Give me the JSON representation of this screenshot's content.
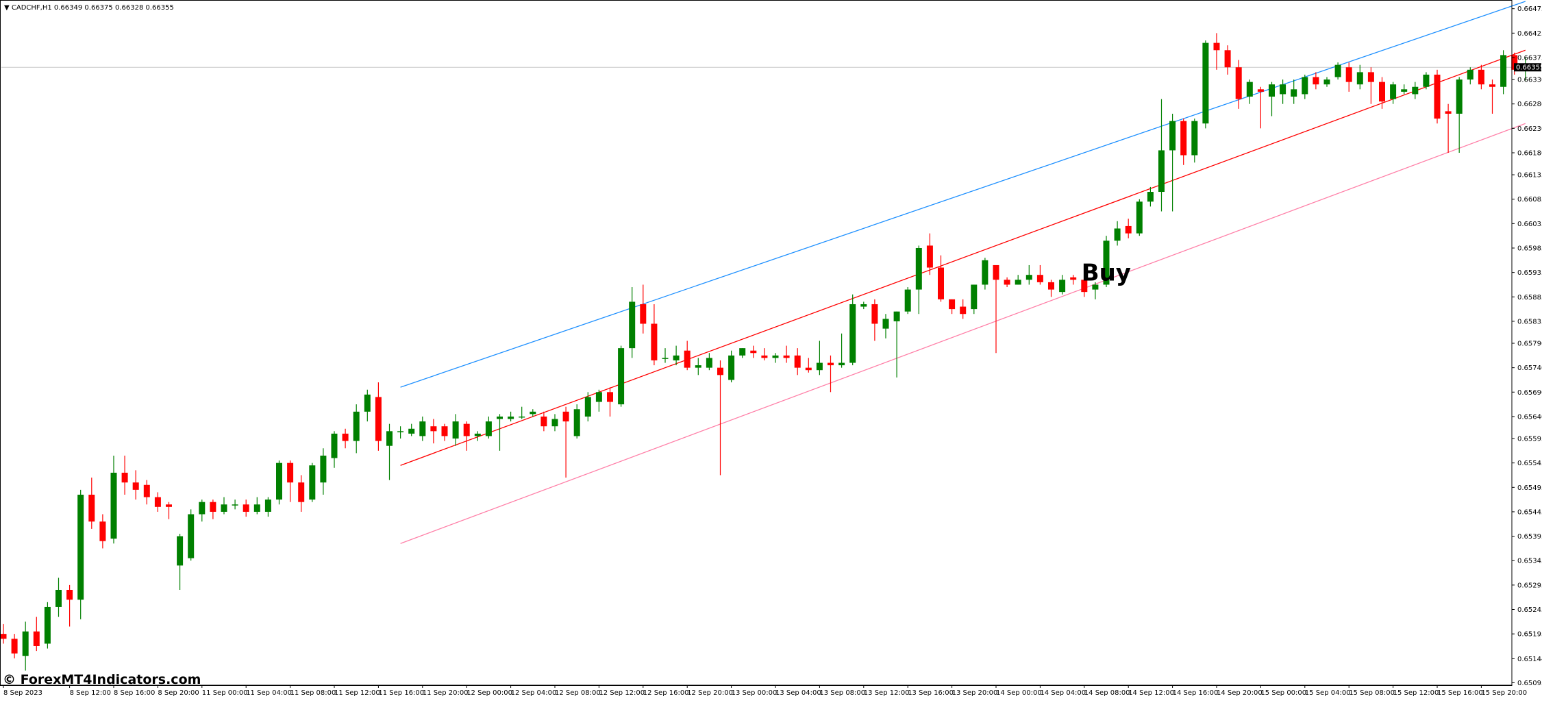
{
  "header": {
    "arrow": "▼",
    "symbol": "CADCHF,H1",
    "ohlc": "0.66349 0.66375 0.66328 0.66355"
  },
  "signal_label": "Buy",
  "watermark": "© ForexMT4Indicators.com",
  "current_price_label": "0.66355",
  "colors": {
    "bull": "#008000",
    "bear": "#ff0000",
    "upper_band": "#1e90ff",
    "middle_line": "#ff0000",
    "lower_band": "#ff80a8",
    "grid_line": "#c8c8c8",
    "axis": "#000000"
  },
  "chart_data": {
    "type": "candlestick",
    "timeframe": "H1",
    "ylim": [
      0.6509,
      0.6649
    ],
    "y_ticks": [
      "0.66475",
      "0.66425",
      "0.66375",
      "0.66330",
      "0.66280",
      "0.66230",
      "0.66180",
      "0.66135",
      "0.66085",
      "0.66035",
      "0.65985",
      "0.65935",
      "0.65885",
      "0.65835",
      "0.65790",
      "0.65740",
      "0.65690",
      "0.65640",
      "0.65595",
      "0.65545",
      "0.65495",
      "0.65445",
      "0.65395",
      "0.65345",
      "0.65295",
      "0.65245",
      "0.65195",
      "0.65144",
      "0.65095"
    ],
    "x_ticks": [
      {
        "index": 0,
        "label": "8 Sep 2023"
      },
      {
        "index": 6,
        "label": "8 Sep 12:00"
      },
      {
        "index": 10,
        "label": "8 Sep 16:00"
      },
      {
        "index": 14,
        "label": "8 Sep 20:00"
      },
      {
        "index": 18,
        "label": "11 Sep 00:00"
      },
      {
        "index": 22,
        "label": "11 Sep 04:00"
      },
      {
        "index": 26,
        "label": "11 Sep 08:00"
      },
      {
        "index": 30,
        "label": "11 Sep 12:00"
      },
      {
        "index": 34,
        "label": "11 Sep 16:00"
      },
      {
        "index": 38,
        "label": "11 Sep 20:00"
      },
      {
        "index": 42,
        "label": "12 Sep 00:00"
      },
      {
        "index": 46,
        "label": "12 Sep 04:00"
      },
      {
        "index": 50,
        "label": "12 Sep 08:00"
      },
      {
        "index": 54,
        "label": "12 Sep 12:00"
      },
      {
        "index": 58,
        "label": "12 Sep 16:00"
      },
      {
        "index": 62,
        "label": "12 Sep 20:00"
      },
      {
        "index": 66,
        "label": "13 Sep 00:00"
      },
      {
        "index": 70,
        "label": "13 Sep 04:00"
      },
      {
        "index": 74,
        "label": "13 Sep 08:00"
      },
      {
        "index": 78,
        "label": "13 Sep 12:00"
      },
      {
        "index": 82,
        "label": "13 Sep 16:00"
      },
      {
        "index": 86,
        "label": "13 Sep 20:00"
      },
      {
        "index": 90,
        "label": "14 Sep 00:00"
      },
      {
        "index": 94,
        "label": "14 Sep 04:00"
      },
      {
        "index": 98,
        "label": "14 Sep 08:00"
      },
      {
        "index": 102,
        "label": "14 Sep 12:00"
      },
      {
        "index": 106,
        "label": "14 Sep 16:00"
      },
      {
        "index": 110,
        "label": "14 Sep 20:00"
      },
      {
        "index": 114,
        "label": "15 Sep 00:00"
      },
      {
        "index": 118,
        "label": "15 Sep 04:00"
      },
      {
        "index": 122,
        "label": "15 Sep 08:00"
      },
      {
        "index": 126,
        "label": "15 Sep 12:00"
      },
      {
        "index": 130,
        "label": "15 Sep 16:00"
      },
      {
        "index": 134,
        "label": "15 Sep 20:00"
      }
    ],
    "current_price": 0.66355,
    "signal": {
      "label": "Buy",
      "index": 97,
      "price": 0.65935
    },
    "candles": [
      [
        0.65195,
        0.65185,
        0.65215,
        0.65175
      ],
      [
        0.65185,
        0.65155,
        0.65195,
        0.65145
      ],
      [
        0.6515,
        0.652,
        0.6522,
        0.6512
      ],
      [
        0.652,
        0.6517,
        0.6523,
        0.6516
      ],
      [
        0.65175,
        0.6525,
        0.6526,
        0.65165
      ],
      [
        0.6525,
        0.65285,
        0.6531,
        0.6523
      ],
      [
        0.65285,
        0.65265,
        0.65295,
        0.6521
      ],
      [
        0.65265,
        0.6548,
        0.6549,
        0.65225
      ],
      [
        0.6548,
        0.65425,
        0.65515,
        0.6541
      ],
      [
        0.65425,
        0.65385,
        0.6544,
        0.6537
      ],
      [
        0.6539,
        0.65525,
        0.6556,
        0.6538
      ],
      [
        0.65525,
        0.65505,
        0.6556,
        0.6548
      ],
      [
        0.65505,
        0.6549,
        0.6553,
        0.6547
      ],
      [
        0.655,
        0.65475,
        0.6551,
        0.6546
      ],
      [
        0.65475,
        0.65455,
        0.65485,
        0.65445
      ],
      [
        0.6546,
        0.65455,
        0.65465,
        0.6543
      ],
      [
        0.65335,
        0.65395,
        0.654,
        0.65285
      ],
      [
        0.6535,
        0.6544,
        0.6545,
        0.65345
      ],
      [
        0.6544,
        0.65465,
        0.6547,
        0.65425
      ],
      [
        0.65465,
        0.65445,
        0.6547,
        0.6543
      ],
      [
        0.65445,
        0.6546,
        0.65475,
        0.6544
      ],
      [
        0.6546,
        0.6546,
        0.6547,
        0.6545
      ],
      [
        0.6546,
        0.65445,
        0.6547,
        0.65435
      ],
      [
        0.65445,
        0.6546,
        0.65475,
        0.6544
      ],
      [
        0.65445,
        0.6547,
        0.65475,
        0.65435
      ],
      [
        0.6547,
        0.65545,
        0.6555,
        0.6546
      ],
      [
        0.65545,
        0.65505,
        0.6555,
        0.65465
      ],
      [
        0.65505,
        0.65465,
        0.6552,
        0.65445
      ],
      [
        0.6547,
        0.6554,
        0.65545,
        0.65465
      ],
      [
        0.65505,
        0.6556,
        0.65575,
        0.6548
      ],
      [
        0.65555,
        0.65605,
        0.6561,
        0.65535
      ],
      [
        0.65605,
        0.6559,
        0.65615,
        0.65575
      ],
      [
        0.6559,
        0.6565,
        0.65665,
        0.65565
      ],
      [
        0.6565,
        0.65685,
        0.65695,
        0.6563
      ],
      [
        0.6568,
        0.6559,
        0.6571,
        0.6557
      ],
      [
        0.6558,
        0.6561,
        0.65625,
        0.6551
      ],
      [
        0.6561,
        0.6561,
        0.6562,
        0.65595
      ],
      [
        0.65605,
        0.65615,
        0.65625,
        0.656
      ],
      [
        0.656,
        0.6563,
        0.6564,
        0.6559
      ],
      [
        0.6562,
        0.6561,
        0.65635,
        0.65585
      ],
      [
        0.6562,
        0.656,
        0.65625,
        0.6559
      ],
      [
        0.65595,
        0.6563,
        0.65645,
        0.6558
      ],
      [
        0.65625,
        0.656,
        0.6563,
        0.6557
      ],
      [
        0.656,
        0.65605,
        0.6561,
        0.6559
      ],
      [
        0.656,
        0.6563,
        0.6564,
        0.65595
      ],
      [
        0.65635,
        0.6564,
        0.65645,
        0.6557
      ],
      [
        0.65635,
        0.6564,
        0.6565,
        0.6563
      ],
      [
        0.6564,
        0.6564,
        0.6566,
        0.65635
      ],
      [
        0.65645,
        0.6565,
        0.65655,
        0.6564
      ],
      [
        0.6564,
        0.6562,
        0.6565,
        0.6561
      ],
      [
        0.6562,
        0.65635,
        0.65645,
        0.6561
      ],
      [
        0.6565,
        0.6563,
        0.6566,
        0.65515
      ],
      [
        0.656,
        0.65655,
        0.65665,
        0.65595
      ],
      [
        0.6564,
        0.6568,
        0.6569,
        0.6563
      ],
      [
        0.6567,
        0.6569,
        0.65695,
        0.6565
      ],
      [
        0.6569,
        0.6567,
        0.657,
        0.6564
      ],
      [
        0.65665,
        0.6578,
        0.65785,
        0.6566
      ],
      [
        0.6578,
        0.65875,
        0.65905,
        0.6576
      ],
      [
        0.6587,
        0.6583,
        0.6591,
        0.6581
      ],
      [
        0.6583,
        0.65755,
        0.6587,
        0.65745
      ],
      [
        0.6576,
        0.6576,
        0.6578,
        0.6575
      ],
      [
        0.65755,
        0.65765,
        0.65785,
        0.65745
      ],
      [
        0.65775,
        0.6574,
        0.65795,
        0.65735
      ],
      [
        0.6574,
        0.65745,
        0.6576,
        0.65725
      ],
      [
        0.6574,
        0.6576,
        0.6577,
        0.65735
      ],
      [
        0.6574,
        0.65725,
        0.65755,
        0.6552
      ],
      [
        0.65715,
        0.65765,
        0.65775,
        0.6571
      ],
      [
        0.65765,
        0.6578,
        0.6578,
        0.6576
      ],
      [
        0.65775,
        0.6577,
        0.65785,
        0.6576
      ],
      [
        0.65765,
        0.6576,
        0.6578,
        0.65755
      ],
      [
        0.6576,
        0.65765,
        0.6577,
        0.6575
      ],
      [
        0.65765,
        0.6576,
        0.65785,
        0.6575
      ],
      [
        0.65765,
        0.6574,
        0.6578,
        0.65725
      ],
      [
        0.6574,
        0.65735,
        0.6576,
        0.6573
      ],
      [
        0.65735,
        0.6575,
        0.65795,
        0.65725
      ],
      [
        0.6575,
        0.65745,
        0.65765,
        0.6569
      ],
      [
        0.65745,
        0.6575,
        0.6581,
        0.6574
      ],
      [
        0.6575,
        0.6587,
        0.6589,
        0.65745
      ],
      [
        0.65865,
        0.6587,
        0.65875,
        0.6586
      ],
      [
        0.6587,
        0.6583,
        0.6588,
        0.65795
      ],
      [
        0.6582,
        0.6584,
        0.6585,
        0.658
      ],
      [
        0.65835,
        0.65855,
        0.65855,
        0.6572
      ],
      [
        0.65855,
        0.659,
        0.65905,
        0.6585
      ],
      [
        0.659,
        0.65985,
        0.6599,
        0.6585
      ],
      [
        0.6599,
        0.65945,
        0.66015,
        0.6593
      ],
      [
        0.65945,
        0.6588,
        0.6597,
        0.65875
      ],
      [
        0.6588,
        0.6586,
        0.6588,
        0.6585
      ],
      [
        0.65865,
        0.6585,
        0.6588,
        0.6584
      ],
      [
        0.6586,
        0.6591,
        0.6591,
        0.6585
      ],
      [
        0.6591,
        0.6596,
        0.65965,
        0.659
      ],
      [
        0.6595,
        0.6592,
        0.6595,
        0.6577
      ],
      [
        0.6592,
        0.6591,
        0.65925,
        0.65905
      ],
      [
        0.6591,
        0.6592,
        0.6593,
        0.6591
      ],
      [
        0.6592,
        0.6593,
        0.6595,
        0.6591
      ],
      [
        0.6593,
        0.65915,
        0.6595,
        0.6591
      ],
      [
        0.65915,
        0.659,
        0.6592,
        0.65885
      ],
      [
        0.65895,
        0.6592,
        0.6593,
        0.6589
      ],
      [
        0.65925,
        0.6592,
        0.6593,
        0.6591
      ],
      [
        0.6592,
        0.65895,
        0.65925,
        0.65885
      ],
      [
        0.659,
        0.6591,
        0.65915,
        0.6588
      ],
      [
        0.6591,
        0.66,
        0.6601,
        0.65905
      ],
      [
        0.66,
        0.66025,
        0.6604,
        0.6599
      ],
      [
        0.6603,
        0.66015,
        0.66045,
        0.66005
      ],
      [
        0.66015,
        0.6608,
        0.66085,
        0.6601
      ],
      [
        0.6608,
        0.661,
        0.6611,
        0.6607
      ],
      [
        0.661,
        0.66185,
        0.6629,
        0.6606
      ],
      [
        0.66185,
        0.66245,
        0.6626,
        0.6606
      ],
      [
        0.66245,
        0.66175,
        0.6625,
        0.66155
      ],
      [
        0.66175,
        0.66245,
        0.6625,
        0.6616
      ],
      [
        0.6624,
        0.66405,
        0.6641,
        0.6623
      ],
      [
        0.66405,
        0.6639,
        0.66425,
        0.6635
      ],
      [
        0.6639,
        0.66355,
        0.664,
        0.6634
      ],
      [
        0.66355,
        0.6629,
        0.6637,
        0.6627
      ],
      [
        0.66295,
        0.66325,
        0.6633,
        0.6628
      ],
      [
        0.6631,
        0.66305,
        0.66315,
        0.6623
      ],
      [
        0.66295,
        0.6632,
        0.66325,
        0.66255
      ],
      [
        0.663,
        0.6632,
        0.6633,
        0.6628
      ],
      [
        0.66295,
        0.6631,
        0.6633,
        0.6628
      ],
      [
        0.663,
        0.66335,
        0.6634,
        0.6629
      ],
      [
        0.66335,
        0.6632,
        0.66345,
        0.6631
      ],
      [
        0.6632,
        0.6633,
        0.66335,
        0.66315
      ],
      [
        0.66335,
        0.6636,
        0.66365,
        0.6633
      ],
      [
        0.66355,
        0.66325,
        0.66365,
        0.66305
      ],
      [
        0.6632,
        0.66345,
        0.6636,
        0.6631
      ],
      [
        0.66345,
        0.66325,
        0.66355,
        0.6628
      ],
      [
        0.66325,
        0.66285,
        0.66335,
        0.6627
      ],
      [
        0.6629,
        0.6632,
        0.66325,
        0.6628
      ],
      [
        0.66305,
        0.6631,
        0.6632,
        0.663
      ],
      [
        0.663,
        0.66315,
        0.66325,
        0.6629
      ],
      [
        0.66315,
        0.6634,
        0.66345,
        0.6631
      ],
      [
        0.6634,
        0.6625,
        0.6635,
        0.6624
      ],
      [
        0.66265,
        0.6626,
        0.6628,
        0.6618
      ],
      [
        0.6626,
        0.6633,
        0.66335,
        0.6618
      ],
      [
        0.6633,
        0.6635,
        0.66355,
        0.6632
      ],
      [
        0.6635,
        0.6632,
        0.6636,
        0.6631
      ],
      [
        0.6632,
        0.66315,
        0.6633,
        0.6626
      ],
      [
        0.66315,
        0.6638,
        0.6639,
        0.663
      ],
      [
        0.6638,
        0.6635,
        0.66385,
        0.6634
      ],
      [
        0.66349,
        0.66355,
        0.66375,
        0.66328
      ]
    ],
    "channel": {
      "start_index": 36,
      "end_index": 138,
      "upper": [
        0.657,
        0.6649
      ],
      "middle": [
        0.6554,
        0.6639
      ],
      "lower": [
        0.6538,
        0.6624
      ]
    }
  }
}
